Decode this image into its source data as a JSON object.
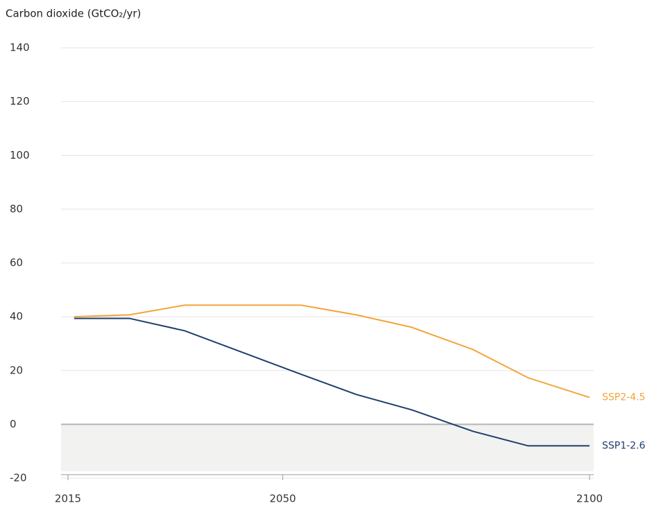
{
  "chart_data": {
    "type": "line",
    "title": "Carbon dioxide (GtCO₂/yr)",
    "x": [
      2016,
      2025,
      2034,
      2053,
      2062,
      2071,
      2081,
      2090,
      2100
    ],
    "series": [
      {
        "name": "SSP2-4.5",
        "color": "#f5a33a",
        "values": [
          40,
          40.7,
          44.3,
          44.3,
          40.7,
          36.1,
          27.8,
          17.3,
          10
        ]
      },
      {
        "name": "SSP1-2.6",
        "color": "#1f3d6b",
        "values": [
          39.4,
          39.4,
          34.8,
          18.6,
          11.1,
          5.4,
          -2.6,
          -8,
          -8
        ]
      }
    ],
    "xlim": [
      2015,
      2100
    ],
    "xticks": [
      2015,
      2050,
      2100
    ],
    "ylim": [
      -20,
      140
    ],
    "yticks": [
      -20,
      0,
      20,
      40,
      60,
      80,
      100,
      120,
      140
    ],
    "grid": true
  }
}
